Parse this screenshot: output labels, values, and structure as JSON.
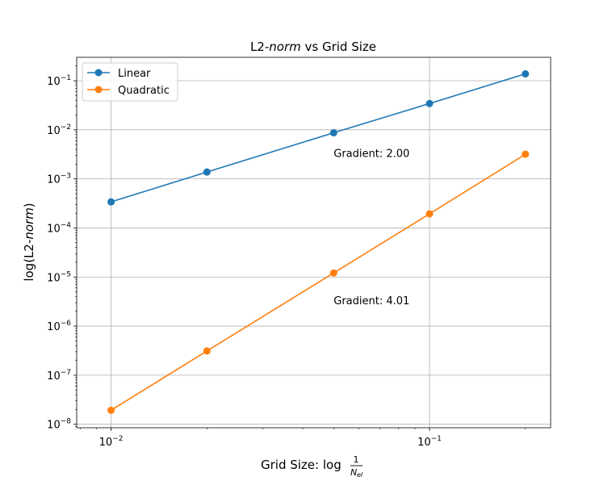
{
  "chart_data": {
    "type": "line",
    "title": {
      "prefix": "L2-",
      "italic": "norm",
      "suffix": " vs Grid Size"
    },
    "xlabel": {
      "text": "Grid Size: log",
      "fraction_numerator": "1",
      "fraction_denominator": "N",
      "fraction_subscript": "el"
    },
    "ylabel": {
      "prefix": "log(L2-",
      "italic": "norm",
      "suffix": ")"
    },
    "xscale": "log",
    "yscale": "log",
    "xlim": [
      0.0078,
      0.24
    ],
    "ylim": [
      8.5e-09,
      0.3
    ],
    "x_ticks": [
      {
        "value": 0.01,
        "base": "10",
        "exp": "−2"
      },
      {
        "value": 0.1,
        "base": "10",
        "exp": "−1"
      }
    ],
    "y_ticks": [
      {
        "value": 1e-08,
        "base": "10",
        "exp": "−8"
      },
      {
        "value": 1e-07,
        "base": "10",
        "exp": "−7"
      },
      {
        "value": 1e-06,
        "base": "10",
        "exp": "−6"
      },
      {
        "value": 1e-05,
        "base": "10",
        "exp": "−5"
      },
      {
        "value": 0.0001,
        "base": "10",
        "exp": "−4"
      },
      {
        "value": 0.001,
        "base": "10",
        "exp": "−3"
      },
      {
        "value": 0.01,
        "base": "10",
        "exp": "−2"
      },
      {
        "value": 0.1,
        "base": "10",
        "exp": "−1"
      }
    ],
    "grid": true,
    "legend_position": "top-left",
    "series": [
      {
        "name": "Linear",
        "color": "#1f77b4",
        "x": [
          0.01,
          0.02,
          0.05,
          0.1,
          0.2
        ],
        "y": [
          0.00034,
          0.00138,
          0.0087,
          0.0343,
          0.138
        ]
      },
      {
        "name": "Quadratic",
        "color": "#ff7f0e",
        "x": [
          0.01,
          0.02,
          0.05,
          0.1,
          0.2
        ],
        "y": [
          1.93e-08,
          3.12e-07,
          1.21e-05,
          0.000194,
          0.00318
        ]
      }
    ],
    "annotations": [
      {
        "text": "Gradient: 2.00",
        "x": 0.05,
        "y": 0.0028
      },
      {
        "text": "Gradient: 4.01",
        "x": 0.05,
        "y": 2.8e-06
      }
    ]
  }
}
